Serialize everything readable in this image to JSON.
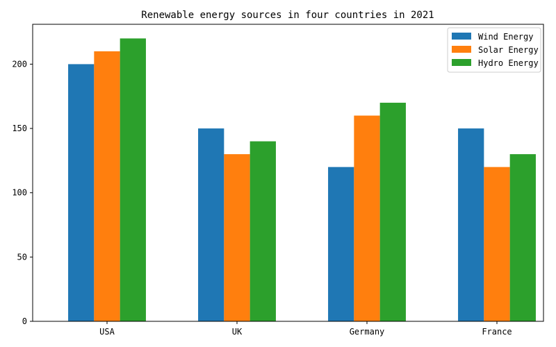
{
  "chart_data": {
    "type": "bar",
    "title": "Renewable energy sources in four countries in 2021",
    "xlabel": "",
    "ylabel": "",
    "categories": [
      "USA",
      "UK",
      "Germany",
      "France"
    ],
    "series": [
      {
        "name": "Wind Energy",
        "values": [
          200,
          150,
          120,
          150
        ],
        "color": "#1f77b4"
      },
      {
        "name": "Solar Energy",
        "values": [
          210,
          130,
          160,
          120
        ],
        "color": "#ff7f0e"
      },
      {
        "name": "Hydro Energy",
        "values": [
          220,
          140,
          170,
          130
        ],
        "color": "#2ca02c"
      }
    ],
    "ylim": [
      0,
      231
    ],
    "yticks": [
      "0",
      "50",
      "100",
      "150",
      "200"
    ],
    "grid": false,
    "legend_position": "top-right"
  }
}
